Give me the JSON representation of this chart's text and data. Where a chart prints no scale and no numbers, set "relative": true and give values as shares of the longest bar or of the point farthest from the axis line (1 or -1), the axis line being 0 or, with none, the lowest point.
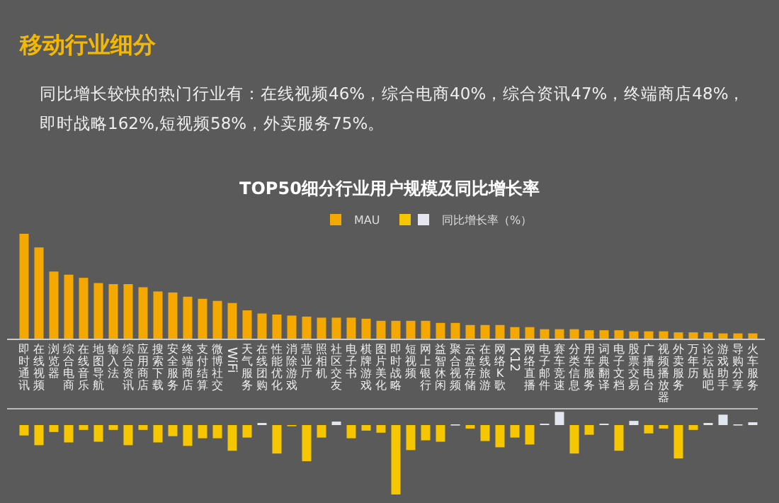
{
  "chart_data": [
    {
      "type": "other",
      "title": "移动行业细分",
      "subtitle": "同比增长较快的热门行业有：在线视频46%，综合电商40%，综合资讯47%，终端商店48%，即时战略162%,短视频58%，外卖服务75%。"
    },
    {
      "type": "bar",
      "title": "TOP50细分行业用户规模及同比增长率",
      "relative": true,
      "legend": "top right",
      "categories": [
        "即时通讯",
        "在线视频",
        "浏览器",
        "综合电商",
        "在线音乐",
        "地图导航",
        "输入法",
        "综合资讯",
        "应用商店",
        "搜索下载",
        "安全服务",
        "终端商店",
        "支付结算",
        "微博社交",
        "WiFi",
        "天气服务",
        "在线团购",
        "性能优化",
        "消除游戏",
        "营业厅",
        "照相机",
        "社区交友",
        "电子书",
        "棋牌游戏",
        "图片美化",
        "即时战略",
        "短视频",
        "网上银行",
        "益智休闲",
        "聚合视频",
        "云盘存储",
        "在线旅游",
        "网络K歌",
        "K12",
        "网络直播",
        "电子邮件",
        "赛车竞速",
        "分类信息",
        "用车服务",
        "词典翻译",
        "电子文档",
        "股票交易",
        "广播电台",
        "视频播放器",
        "外卖服务",
        "万年历",
        "论坛贴吧",
        "游戏助手",
        "导购分享",
        "火车服务"
      ],
      "series": [
        {
          "name": "MAU",
          "color": "#f5a800",
          "values": [
            1,
            0.87,
            0.64,
            0.61,
            0.58,
            0.53,
            0.52,
            0.52,
            0.49,
            0.45,
            0.44,
            0.4,
            0.38,
            0.36,
            0.34,
            0.27,
            0.24,
            0.23,
            0.22,
            0.21,
            0.2,
            0.2,
            0.2,
            0.19,
            0.17,
            0.17,
            0.17,
            0.17,
            0.15,
            0.15,
            0.13,
            0.13,
            0.13,
            0.11,
            0.11,
            0.09,
            0.09,
            0.09,
            0.08,
            0.08,
            0.08,
            0.07,
            0.07,
            0.07,
            0.06,
            0.06,
            0.06,
            0.05,
            0.05,
            0.05
          ]
        }
      ]
    },
    {
      "type": "bar",
      "relative": true,
      "legend": "top right",
      "categories": [
        null,
        null,
        null,
        null,
        null,
        null,
        null,
        null,
        null,
        null,
        null,
        null,
        null,
        null,
        null,
        null,
        null,
        null,
        null,
        null,
        null,
        null,
        null,
        null,
        null,
        null,
        null,
        null,
        null,
        null,
        null,
        null,
        null,
        null,
        null,
        null,
        null,
        null,
        null,
        null,
        null,
        null,
        null,
        null,
        null,
        null,
        null,
        null,
        null,
        null
      ],
      "series": [
        {
          "name": "同比增长率（%）",
          "colors": [
            "#f6c700",
            "#f6c700",
            "#f6c700",
            "#f6c700",
            "#f6c700",
            "#f6c700",
            "#f6c700",
            "#f6c700",
            "#f6c700",
            "#f6c700",
            "#f6c700",
            "#f6c700",
            "#f6c700",
            "#f6c700",
            "#f6c700",
            "#f6c700",
            "#e4e6ef",
            "#f6c700",
            "#f6c700",
            "#f6c700",
            "#f6c700",
            "#e4e6ef",
            "#f6c700",
            "#f6c700",
            "#f6c700",
            "#f6c700",
            "#f6c700",
            "#f6c700",
            "#f6c700",
            "#e4e6ef",
            "#f6c700",
            "#f6c700",
            "#f6c700",
            "#f6c700",
            "#f6c700",
            "#e4e6ef",
            "#e4e6ef",
            "#f6c700",
            "#f6c700",
            "#e4e6ef",
            "#f6c700",
            "#e4e6ef",
            "#f6c700",
            "#f6c700",
            "#f6c700",
            "#f6c700",
            "#e4e6ef",
            "#e4e6ef",
            "#e4e6ef",
            "#e4e6ef"
          ],
          "values": [
            -0.15,
            -0.29,
            -0.1,
            -0.25,
            -0.07,
            -0.24,
            -0.07,
            -0.29,
            -0.07,
            -0.25,
            -0.16,
            -0.3,
            -0.19,
            -0.19,
            -0.37,
            -0.18,
            0.03,
            -0.41,
            -0.01,
            -0.52,
            -0.18,
            0.05,
            -0.19,
            -0.08,
            -0.11,
            -1,
            -0.36,
            -0.22,
            -0.24,
            0.01,
            -0.05,
            -0.23,
            -0.32,
            -0.18,
            -0.28,
            0.02,
            0.19,
            -0.41,
            -0.14,
            0.02,
            -0.37,
            0.06,
            -0.12,
            -0.05,
            -0.48,
            -0.07,
            0.03,
            0.15,
            0.01,
            0.04
          ]
        }
      ]
    }
  ]
}
